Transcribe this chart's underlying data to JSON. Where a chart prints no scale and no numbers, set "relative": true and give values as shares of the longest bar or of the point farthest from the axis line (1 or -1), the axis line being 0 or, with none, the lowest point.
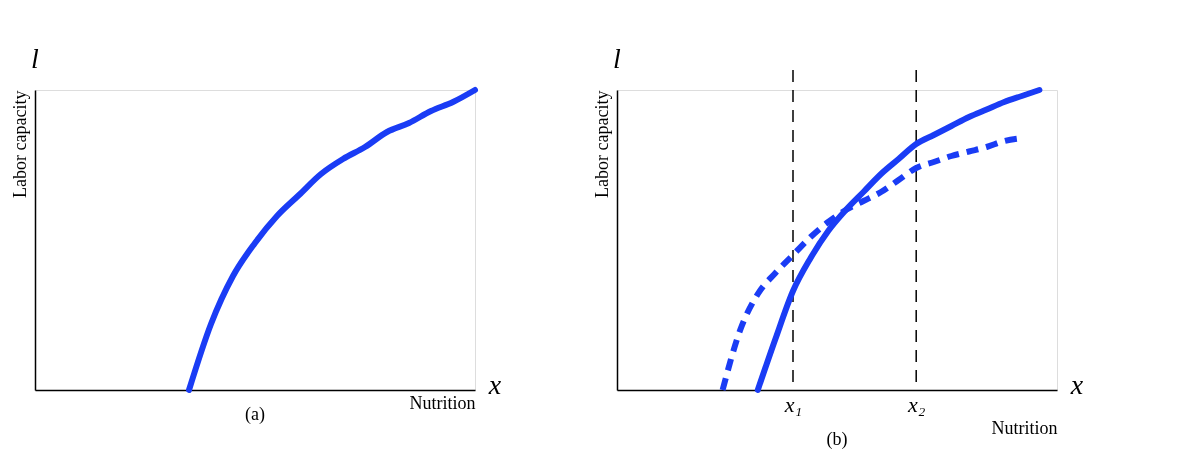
{
  "chart_data": [
    {
      "type": "line",
      "title": "(a)",
      "xlabel": "Nutrition",
      "ylabel": "Labor capacity",
      "annotations": [
        "l",
        "x"
      ],
      "categories": [
        null,
        null,
        null,
        null,
        null,
        null,
        null,
        null,
        null,
        null,
        null,
        null,
        null,
        null,
        null,
        null,
        null,
        null,
        null,
        null,
        null
      ],
      "relative": true,
      "grid": false,
      "tick_labels": false,
      "line_style": "solid",
      "series": [
        {
          "color": "#1a3cf5",
          "values": [
            null,
            null,
            null,
            null,
            null,
            null,
            null,
            0,
            0.22,
            0.38,
            0.49,
            0.58,
            0.65,
            0.72,
            0.77,
            0.81,
            0.86,
            0.89,
            0.93,
            0.96,
            1
          ]
        }
      ]
    },
    {
      "type": "line",
      "title": "(b)",
      "xlabel": "Nutrition",
      "ylabel": "Labor capacity",
      "annotations": [
        "l",
        "x"
      ],
      "relative": true,
      "grid": false,
      "tick_labels": "x",
      "categories": [
        null,
        null,
        null,
        null,
        null,
        null,
        null,
        null,
        null,
        null,
        "x₁",
        null,
        null,
        null,
        null,
        null,
        null,
        "x₂",
        null,
        null,
        null,
        null,
        null,
        null,
        null,
        null
      ],
      "ref_lines": [
        {
          "axis": "x",
          "value": "x₁",
          "color": "#000000",
          "line_style": "dashed"
        },
        {
          "axis": "x",
          "value": "x₂",
          "color": "#000000",
          "line_style": "dashed"
        }
      ],
      "series": [
        {
          "color": "#1a3cf5",
          "line_style": "solid",
          "values": [
            null,
            null,
            null,
            null,
            null,
            null,
            null,
            null,
            0,
            0.17,
            0.33,
            0.44,
            0.53,
            0.6,
            0.66,
            0.72,
            0.77,
            0.82,
            0.85,
            0.88,
            0.91,
            0.935,
            0.96,
            0.98,
            1,
            null
          ]
        },
        {
          "color": "#1a3cf5",
          "line_style": "dashed",
          "values": [
            null,
            null,
            null,
            null,
            null,
            null,
            0,
            0.2,
            0.32,
            0.39,
            0.45,
            0.51,
            0.56,
            0.6,
            0.63,
            0.66,
            0.7,
            0.74,
            0.76,
            0.78,
            0.795,
            0.81,
            0.83,
            0.84,
            null,
            null
          ]
        }
      ]
    }
  ]
}
